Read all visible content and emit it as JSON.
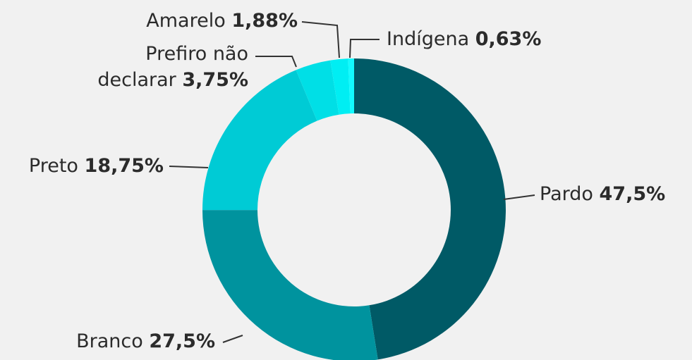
{
  "chart_data": {
    "type": "donut",
    "categories": [
      "Pardo",
      "Branco",
      "Preto",
      "Prefiro não declarar",
      "Amarelo",
      "Indígena"
    ],
    "values": [
      47.5,
      27.5,
      18.75,
      3.75,
      1.88,
      0.63
    ],
    "value_labels": [
      "47,5%",
      "27,5%",
      "18,75%",
      "3,75%",
      "1,88%",
      "0,63%"
    ],
    "colors": [
      "#005a66",
      "#00939e",
      "#00cbd5",
      "#00dfe6",
      "#00eef3",
      "#12fbff"
    ]
  }
}
